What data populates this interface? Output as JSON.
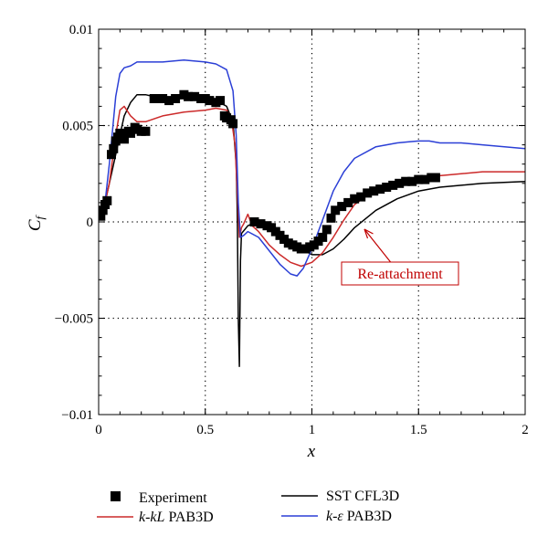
{
  "chart_data": {
    "type": "line",
    "xlabel": "x",
    "ylabel_main": "C",
    "ylabel_sub": "f",
    "xlim": [
      0,
      2
    ],
    "ylim": [
      -0.01,
      0.01
    ],
    "xticks": [
      0,
      0.5,
      1,
      1.5,
      2
    ],
    "xtick_labels": [
      "0",
      "0.5",
      "1",
      "1.5",
      "2"
    ],
    "yticks": [
      -0.01,
      -0.005,
      0,
      0.005,
      0.01
    ],
    "ytick_labels": [
      "−0.01",
      "−0.005",
      "0",
      "0.005",
      "0.01"
    ],
    "grid": "dotted",
    "annotation": {
      "text": "Re-attachment",
      "color": "#c00000",
      "arrow_to": [
        1.25,
        -0.0004
      ]
    },
    "legend": {
      "placement": "bottom",
      "experiment": "Experiment",
      "sst": "SST CFL3D",
      "kkl_italic": "k-kL",
      "kkl_rest": " PAB3D",
      "ke_italic": "k-ε",
      "ke_rest": " PAB3D"
    },
    "series": [
      {
        "name": "SST CFL3D",
        "color": "#000000",
        "x": [
          0,
          0.03,
          0.05,
          0.08,
          0.1,
          0.12,
          0.15,
          0.18,
          0.22,
          0.3,
          0.4,
          0.5,
          0.55,
          0.6,
          0.63,
          0.645,
          0.65,
          0.655,
          0.66,
          0.665,
          0.67,
          0.7,
          0.72,
          0.75,
          0.8,
          0.85,
          0.9,
          0.95,
          1.0,
          1.05,
          1.1,
          1.15,
          1.2,
          1.3,
          1.4,
          1.5,
          1.6,
          1.7,
          1.8,
          2.0
        ],
        "y": [
          0.0004,
          0.001,
          0.002,
          0.0035,
          0.0045,
          0.0055,
          0.0062,
          0.0066,
          0.0066,
          0.0064,
          0.0064,
          0.0065,
          0.0063,
          0.006,
          0.0052,
          0.003,
          0.0005,
          -0.005,
          -0.0075,
          -0.002,
          -0.0006,
          -0.0002,
          -0.0001,
          -0.0002,
          -0.0004,
          -0.0007,
          -0.001,
          -0.0014,
          -0.0017,
          -0.0017,
          -0.0014,
          -0.0009,
          -0.0003,
          0.0006,
          0.0012,
          0.0016,
          0.0018,
          0.0019,
          0.002,
          0.0021
        ]
      },
      {
        "name": "k-kL PAB3D",
        "color": "#cc2a2a",
        "x": [
          0,
          0.03,
          0.05,
          0.08,
          0.1,
          0.12,
          0.15,
          0.18,
          0.22,
          0.3,
          0.4,
          0.5,
          0.55,
          0.6,
          0.62,
          0.64,
          0.65,
          0.66,
          0.67,
          0.68,
          0.7,
          0.72,
          0.75,
          0.8,
          0.85,
          0.9,
          0.95,
          1.0,
          1.05,
          1.1,
          1.15,
          1.2,
          1.3,
          1.4,
          1.5,
          1.6,
          1.7,
          1.8,
          2.0
        ],
        "y": [
          0.0004,
          0.001,
          0.002,
          0.0045,
          0.0058,
          0.006,
          0.0055,
          0.0052,
          0.0052,
          0.0055,
          0.0057,
          0.0058,
          0.0059,
          0.0058,
          0.0055,
          0.004,
          0.0015,
          -0.0008,
          -0.0003,
          -0.0001,
          0.0004,
          -0.0002,
          -0.0005,
          -0.0012,
          -0.0017,
          -0.0021,
          -0.0023,
          -0.0021,
          -0.0016,
          -0.0008,
          0.0001,
          0.0009,
          0.0017,
          0.0021,
          0.0023,
          0.0024,
          0.0025,
          0.0026,
          0.0026
        ]
      },
      {
        "name": "k-ε PAB3D",
        "color": "#2b3fd6",
        "x": [
          0,
          0.03,
          0.05,
          0.08,
          0.1,
          0.12,
          0.15,
          0.18,
          0.2,
          0.25,
          0.3,
          0.4,
          0.5,
          0.55,
          0.6,
          0.63,
          0.645,
          0.655,
          0.665,
          0.68,
          0.7,
          0.75,
          0.8,
          0.85,
          0.9,
          0.93,
          0.96,
          1.0,
          1.05,
          1.1,
          1.15,
          1.2,
          1.3,
          1.4,
          1.45,
          1.5,
          1.55,
          1.6,
          1.7,
          1.8,
          2.0
        ],
        "y": [
          0.0004,
          0.001,
          0.003,
          0.0065,
          0.0077,
          0.008,
          0.0081,
          0.0083,
          0.0083,
          0.0083,
          0.0083,
          0.0084,
          0.0083,
          0.0082,
          0.0079,
          0.0068,
          0.0045,
          0.001,
          -0.0008,
          -0.0007,
          -0.0005,
          -0.0008,
          -0.0015,
          -0.0022,
          -0.0027,
          -0.0028,
          -0.0024,
          -0.0014,
          0.0001,
          0.0016,
          0.0026,
          0.0033,
          0.0039,
          0.0041,
          0.00415,
          0.0042,
          0.0042,
          0.0041,
          0.0041,
          0.004,
          0.0038
        ]
      }
    ],
    "experiment": {
      "name": "Experiment",
      "color": "#000000",
      "x": [
        0.01,
        0.02,
        0.03,
        0.04,
        0.06,
        0.07,
        0.08,
        0.09,
        0.1,
        0.12,
        0.14,
        0.15,
        0.17,
        0.18,
        0.2,
        0.22,
        0.26,
        0.3,
        0.33,
        0.36,
        0.4,
        0.42,
        0.45,
        0.48,
        0.5,
        0.52,
        0.55,
        0.57,
        0.59,
        0.6,
        0.62,
        0.63,
        0.73,
        0.76,
        0.79,
        0.81,
        0.83,
        0.85,
        0.87,
        0.89,
        0.91,
        0.93,
        0.95,
        0.97,
        0.99,
        1.01,
        1.03,
        1.05,
        1.07,
        1.09,
        1.11,
        1.14,
        1.17,
        1.2,
        1.23,
        1.26,
        1.29,
        1.32,
        1.35,
        1.38,
        1.41,
        1.44,
        1.47,
        1.5,
        1.53,
        1.56,
        1.58
      ],
      "y": [
        0.0003,
        0.0006,
        0.0009,
        0.0011,
        0.0035,
        0.0038,
        0.0042,
        0.0044,
        0.0046,
        0.0043,
        0.0047,
        0.0046,
        0.0049,
        0.0048,
        0.0047,
        0.0047,
        0.0064,
        0.0064,
        0.0063,
        0.0064,
        0.0066,
        0.0065,
        0.0065,
        0.0064,
        0.0064,
        0.0063,
        0.0062,
        0.0063,
        0.0055,
        0.0054,
        0.0053,
        0.0051,
        0.0,
        -0.0001,
        -0.0002,
        -0.0003,
        -0.0005,
        -0.0007,
        -0.0009,
        -0.0011,
        -0.0012,
        -0.0013,
        -0.0014,
        -0.0014,
        -0.0013,
        -0.0012,
        -0.001,
        -0.0008,
        -0.0004,
        0.0002,
        0.0006,
        0.0008,
        0.001,
        0.0012,
        0.0013,
        0.0015,
        0.0016,
        0.0017,
        0.0018,
        0.0019,
        0.002,
        0.0021,
        0.0021,
        0.0022,
        0.0022,
        0.0023,
        0.0023
      ]
    }
  }
}
